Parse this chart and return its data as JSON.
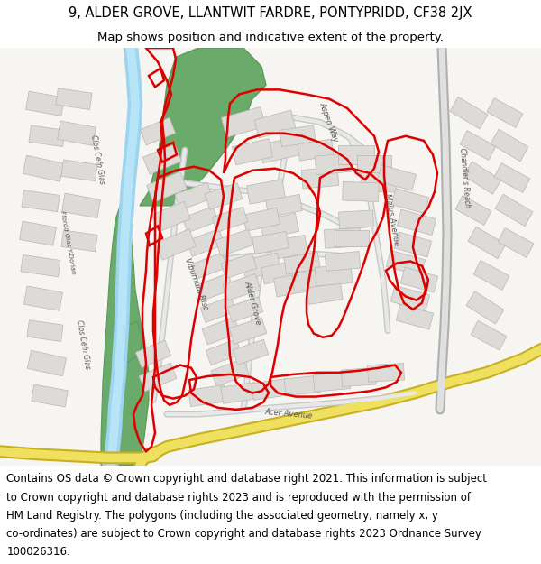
{
  "title_line1": "9, ALDER GROVE, LLANTWIT FARDRE, PONTYPRIDD, CF38 2JX",
  "title_line2": "Map shows position and indicative extent of the property.",
  "footer_line1": "Contains OS data © Crown copyright and database right 2021. This information is subject",
  "footer_line2": "to Crown copyright and database rights 2023 and is reproduced with the permission of",
  "footer_line3": "HM Land Registry. The polygons (including the associated geometry, namely x, y",
  "footer_line4": "co-ordinates) are subject to Crown copyright and database rights 2023 Ordnance Survey",
  "footer_line5": "100026316.",
  "title_fontsize": 10.5,
  "subtitle_fontsize": 9.5,
  "footer_fontsize": 8.5,
  "fig_width": 6.0,
  "fig_height": 6.25,
  "dpi": 100,
  "map_bg": "#f7f5f2",
  "road_yellow_outer": "#c8b020",
  "road_yellow_inner": "#f0e060",
  "road_grey_outer": "#b0b0b0",
  "road_grey_inner": "#e0e0e0",
  "water_blue": "#9dd4ef",
  "green_fill": "#6aaa6a",
  "building_fill": "#dddbd7",
  "building_edge": "#b8b6b2",
  "red_outline": "#dd0000",
  "red_lw": 1.8
}
